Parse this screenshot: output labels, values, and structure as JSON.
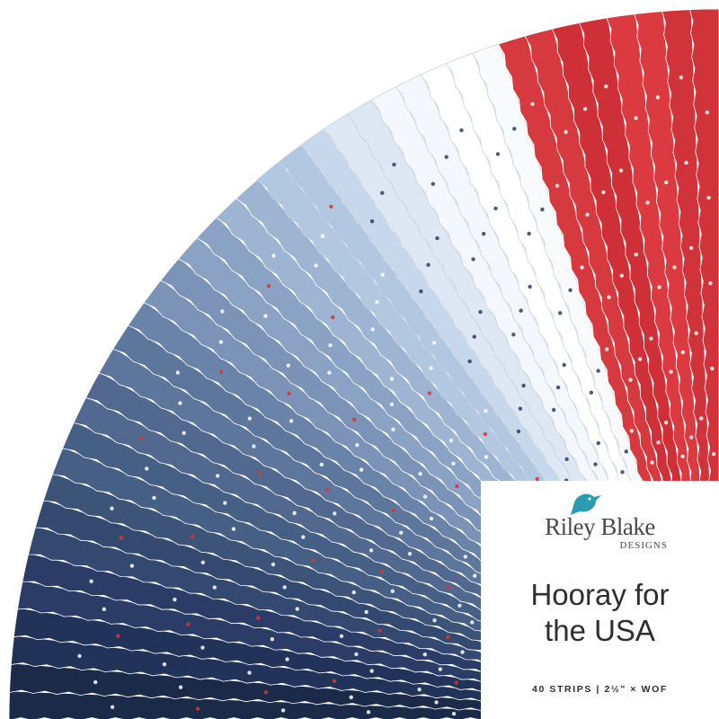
{
  "brand": {
    "name": "Riley Blake",
    "sub": "DESIGNS"
  },
  "title_lines": [
    "Hooray for",
    "the USA"
  ],
  "footer": "40 STRIPS | 2½\" × WOF"
}
